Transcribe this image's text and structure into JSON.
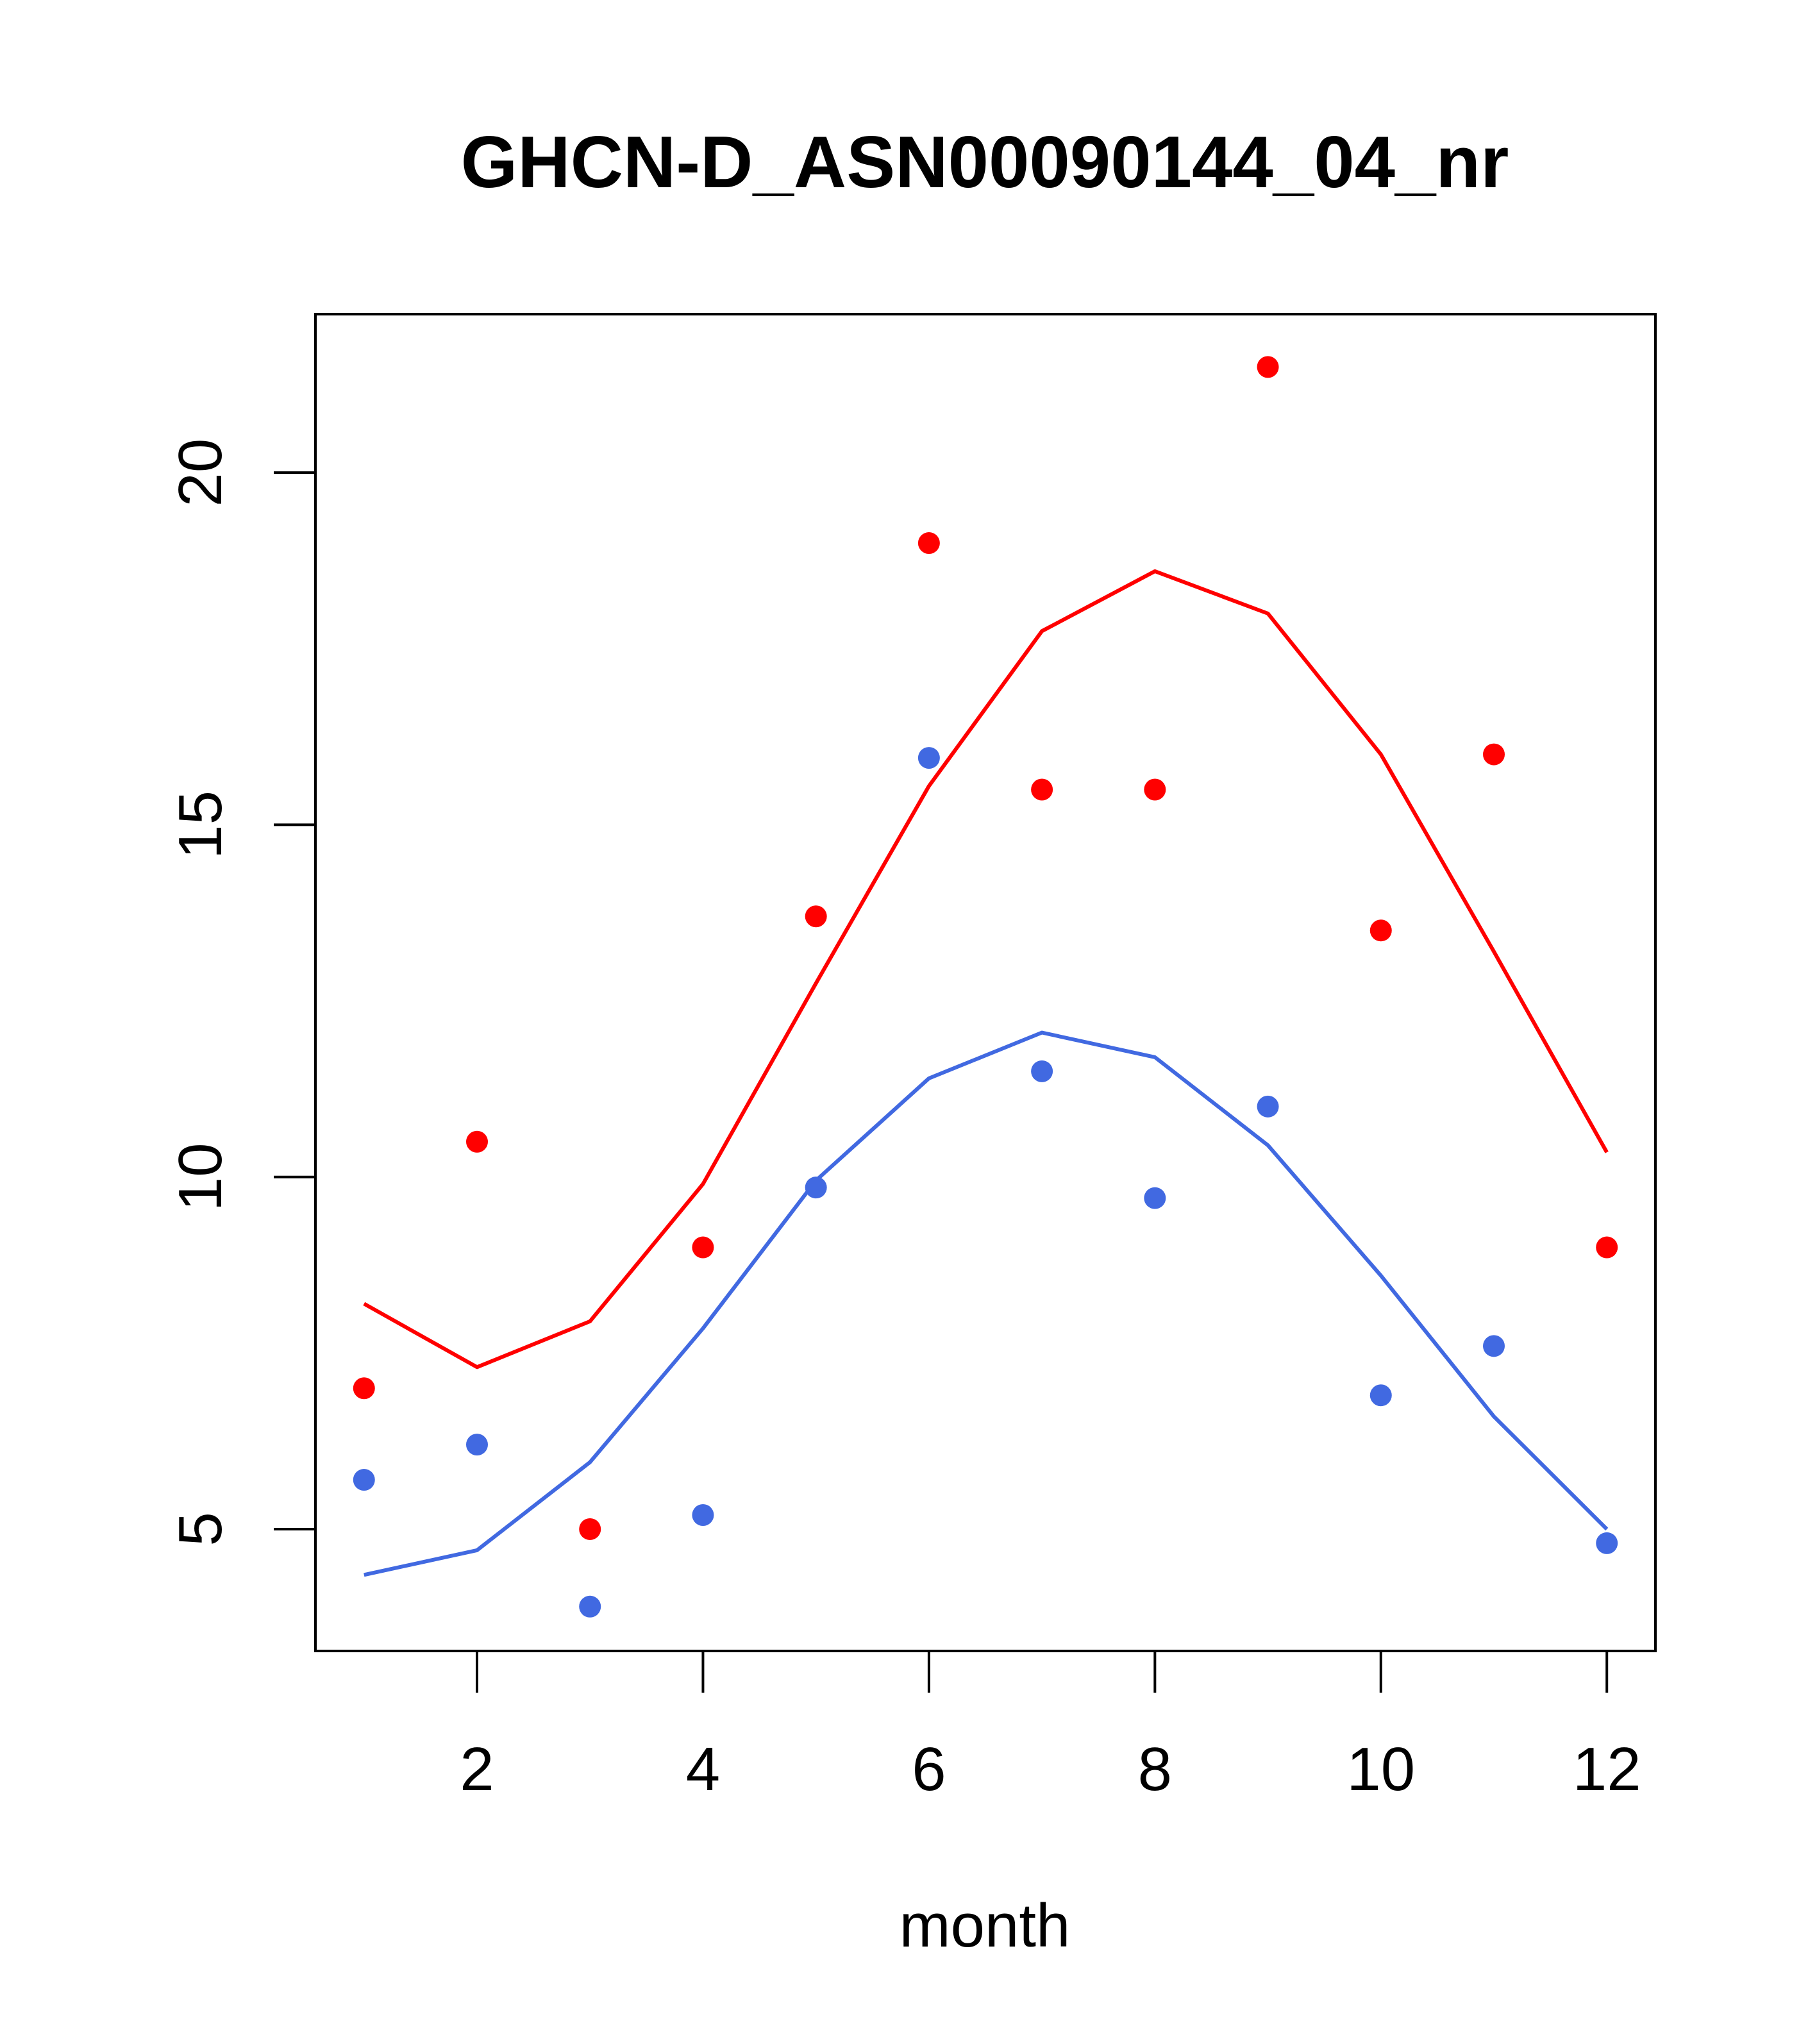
{
  "chart_data": {
    "type": "scatter",
    "title": "GHCN-D_ASN00090144_04_nr",
    "xlabel": "month",
    "ylabel": "",
    "xlim": [
      0.57,
      12.43
    ],
    "ylim": [
      3.27,
      22.25
    ],
    "x_ticks": [
      2,
      4,
      6,
      8,
      10,
      12
    ],
    "y_ticks": [
      5,
      10,
      15,
      20
    ],
    "grid": false,
    "legend": "none",
    "colors": {
      "red": "#ff0000",
      "blue": "#4169e1"
    },
    "x": [
      1,
      2,
      3,
      4,
      5,
      6,
      7,
      8,
      9,
      10,
      11,
      12
    ],
    "series": [
      {
        "kind": "points",
        "color": "#ff0000",
        "values": [
          7.0,
          10.5,
          5.0,
          9.0,
          13.7,
          19.0,
          15.5,
          15.5,
          21.5,
          13.5,
          16.0,
          9.0
        ]
      },
      {
        "kind": "points",
        "color": "#4169e1",
        "values": [
          5.7,
          6.2,
          3.9,
          5.2,
          9.85,
          15.95,
          11.5,
          9.7,
          11.0,
          6.9,
          7.6,
          4.8
        ]
      },
      {
        "kind": "line",
        "color": "#ff0000",
        "values": [
          8.2,
          7.3,
          7.95,
          9.9,
          12.75,
          15.55,
          17.75,
          18.6,
          18.0,
          16.0,
          13.2,
          10.35
        ]
      },
      {
        "kind": "line",
        "color": "#4169e1",
        "values": [
          4.35,
          4.7,
          5.95,
          7.85,
          9.95,
          11.4,
          12.05,
          11.7,
          10.45,
          8.6,
          6.6,
          5.0
        ]
      }
    ]
  }
}
